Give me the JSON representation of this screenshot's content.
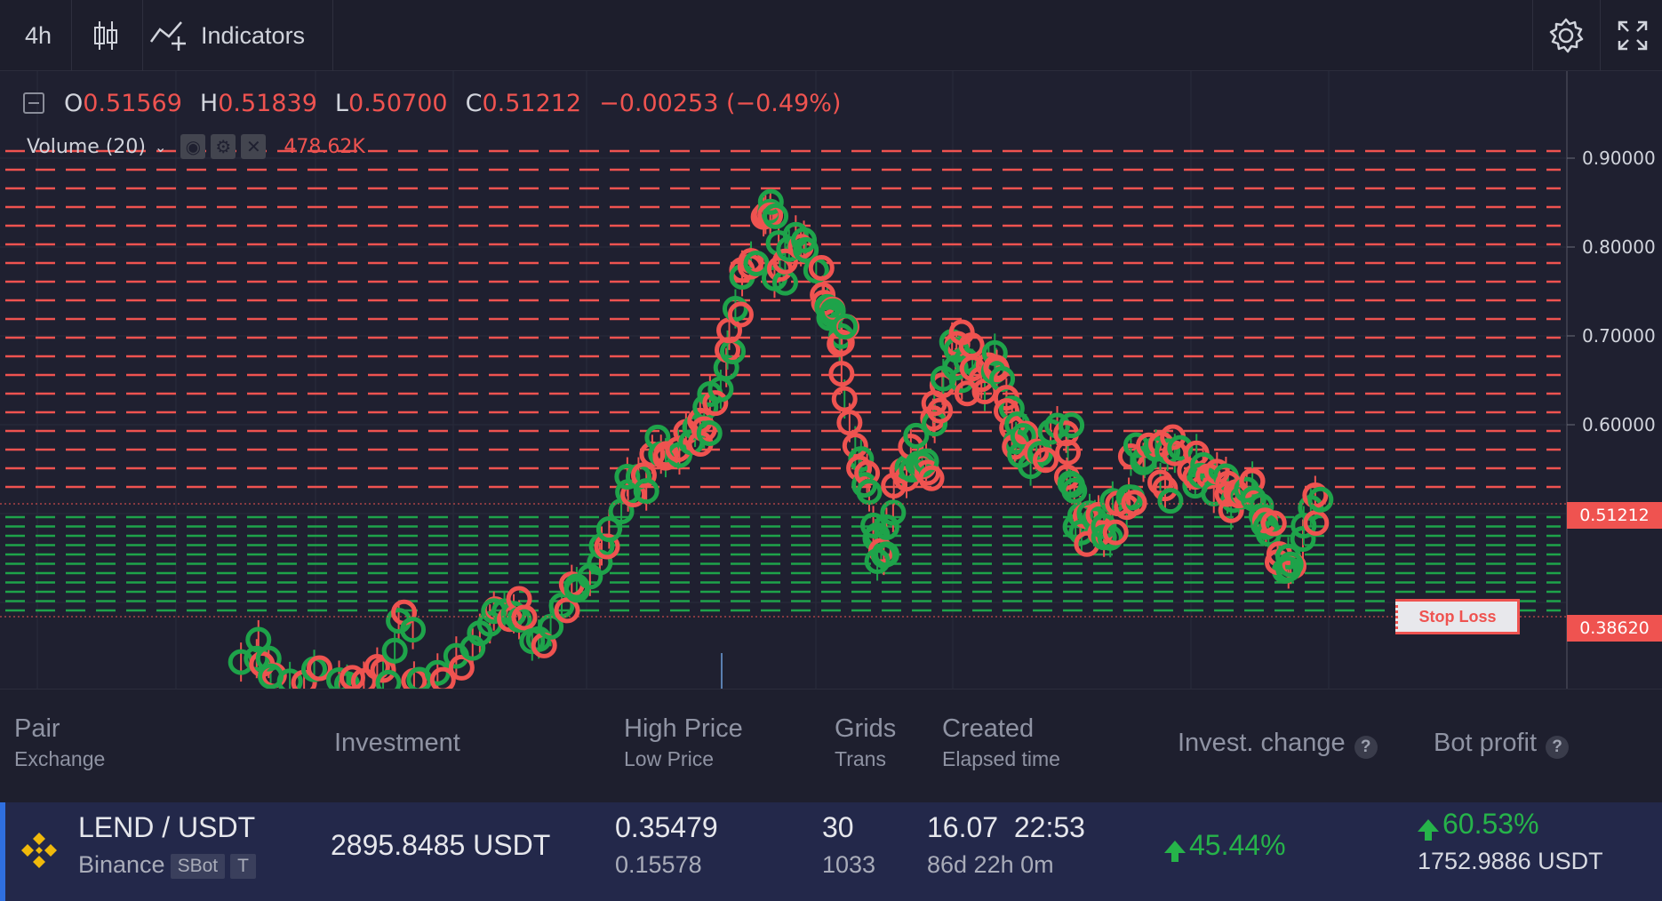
{
  "toolbar": {
    "interval": "4h",
    "indicators_label": "Indicators",
    "chart_type_icon": "candlestick-icon",
    "indicators_icon": "indicators-icon",
    "settings_icon": "gear-icon",
    "fullscreen_icon": "fullscreen-icon"
  },
  "legend": {
    "o_key": "O",
    "o_val": "0.51569",
    "h_key": "H",
    "h_val": "0.51839",
    "l_key": "L",
    "l_val": "0.50700",
    "c_key": "C",
    "c_val": "0.51212",
    "change": "−0.00253 (−0.49%)"
  },
  "volume": {
    "label": "Volume (20)",
    "value": "478.62K"
  },
  "axis": {
    "ticks": [
      "0.90000",
      "0.80000",
      "0.70000",
      "0.60000"
    ],
    "current_price": "0.51212",
    "stop_price": "0.38620"
  },
  "stop_loss_label": "Stop Loss",
  "colors": {
    "up": "#1ea34a",
    "down": "#ef5350",
    "background": "#1f2030",
    "row_highlight": "#23284a",
    "accent": "#2f6fe0"
  },
  "table": {
    "headers": {
      "pair": "Pair",
      "exchange": "Exchange",
      "investment": "Investment",
      "high_price": "High Price",
      "low_price": "Low Price",
      "grids": "Grids",
      "trans": "Trans",
      "created": "Created",
      "elapsed": "Elapsed time",
      "invest_change": "Invest. change",
      "bot_profit": "Bot profit",
      "help": "?"
    },
    "row": {
      "pair": "LEND / USDT",
      "exchange": "Binance",
      "badge_bot": "SBot",
      "badge_t": "T",
      "investment": "2895.8485 USDT",
      "high_price": "0.35479",
      "low_price": "0.15578",
      "grids": "30",
      "trans": "1033",
      "created": "16.07  22:53",
      "elapsed": "86d 22h 0m",
      "invest_change": "45.44%",
      "bot_profit_pct": "60.53%",
      "bot_profit_usdt": "1752.9886 USDT",
      "exchange_icon": "binance-icon"
    }
  }
}
